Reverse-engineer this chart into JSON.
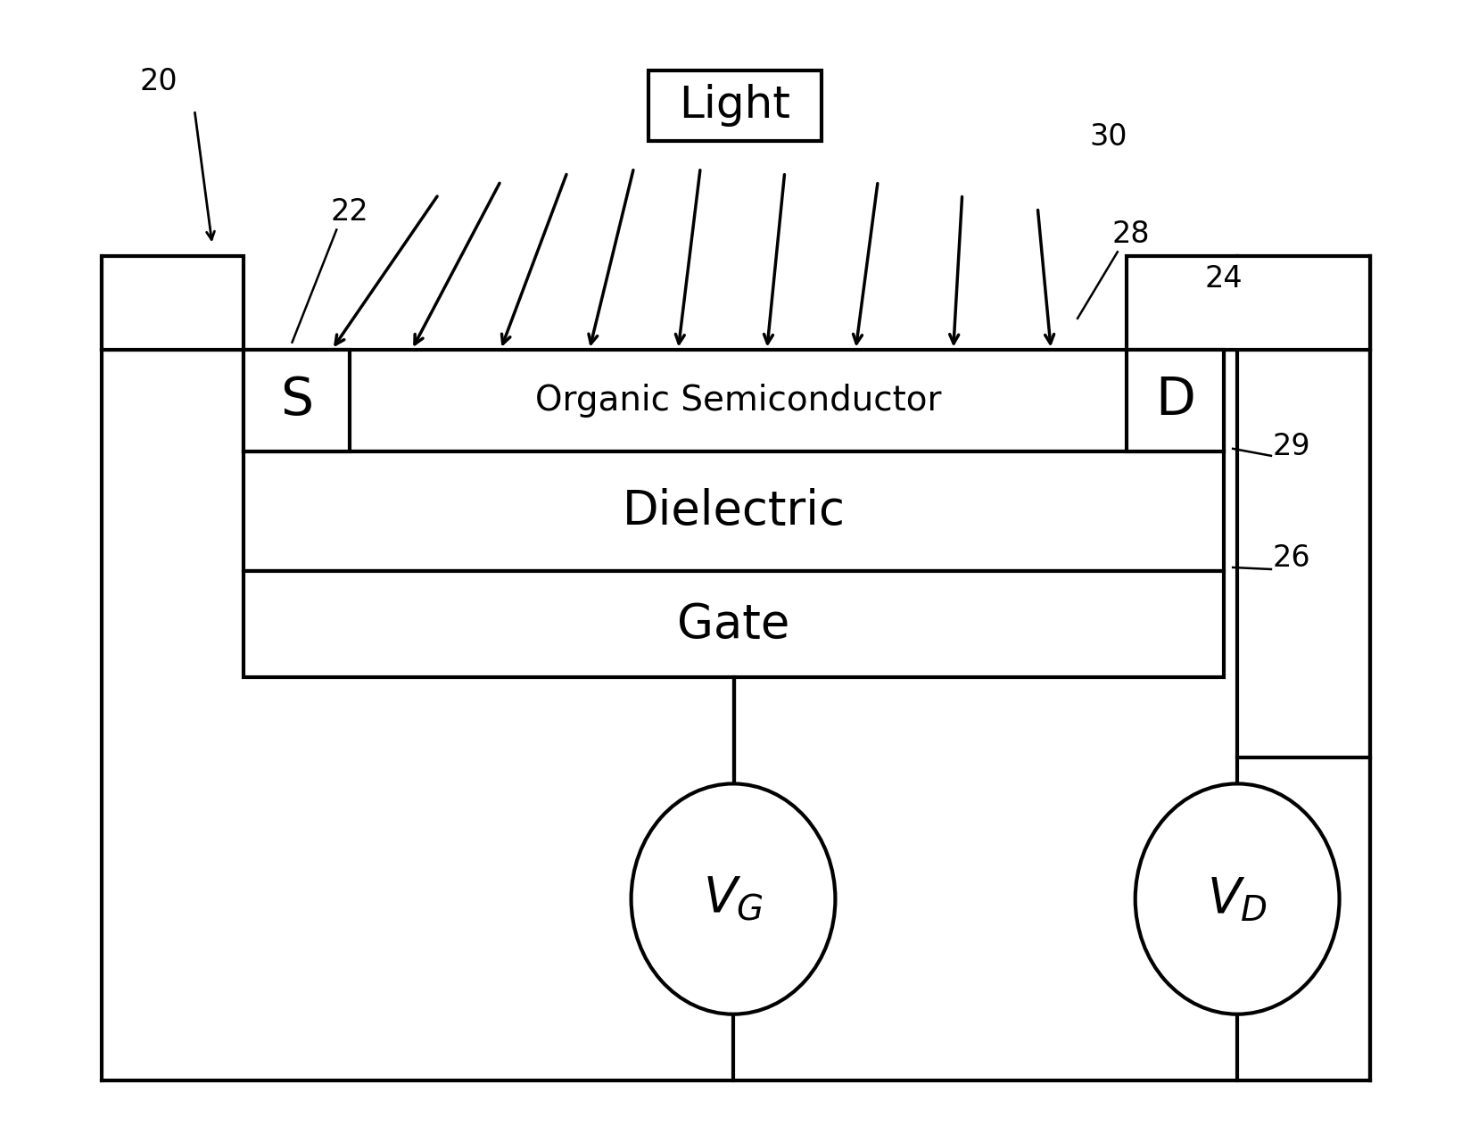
{
  "bg_color": "#ffffff",
  "line_color": "#000000",
  "line_width": 3.0,
  "fig_width": 16.48,
  "fig_height": 12.71,
  "semiconductor_label": "Organic Semiconductor",
  "dielectric_label": "Dielectric",
  "gate_label": "Gate",
  "source_label": "S",
  "drain_label": "D",
  "light_label": "Light",
  "ref_labels": [
    "20",
    "22",
    "24",
    "26",
    "28",
    "29",
    "30"
  ],
  "VG_text": "$V_G$",
  "VD_text": "$V_D$"
}
